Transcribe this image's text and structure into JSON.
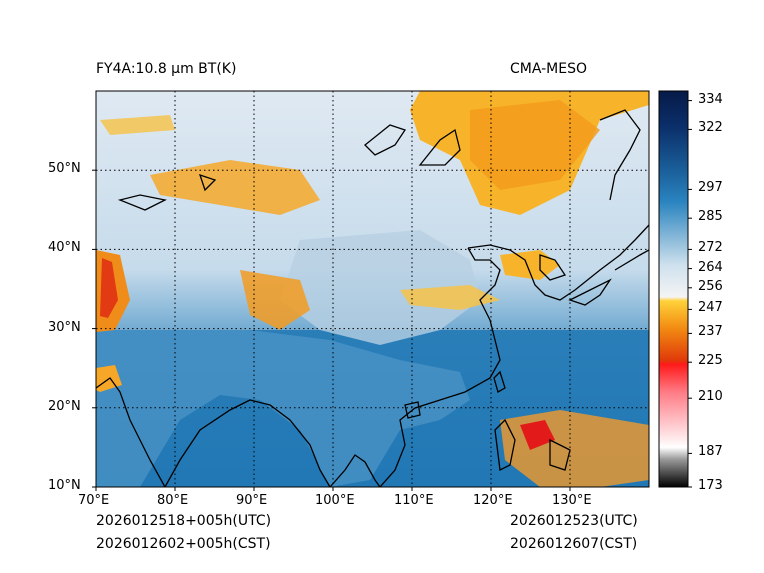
{
  "header": {
    "left_title": "FY4A:10.8 µm BT(K)",
    "right_title": "CMA-MESO"
  },
  "footer": {
    "init_utc": "2026012518+005h(UTC)",
    "init_cst": "2026012602+005h(CST)",
    "valid_utc": "2026012523(UTC)",
    "valid_cst": "2026012607(CST)"
  },
  "map": {
    "lon_range": [
      70,
      140
    ],
    "lat_range": [
      10,
      60
    ],
    "lon_ticks": [
      {
        "value": 70,
        "label": "70°E"
      },
      {
        "value": 80,
        "label": "80°E"
      },
      {
        "value": 90,
        "label": "90°E"
      },
      {
        "value": 100,
        "label": "100°E"
      },
      {
        "value": 110,
        "label": "110°E"
      },
      {
        "value": 120,
        "label": "120°E"
      },
      {
        "value": 130,
        "label": "130°E"
      }
    ],
    "lat_ticks": [
      {
        "value": 10,
        "label": "10°N"
      },
      {
        "value": 20,
        "label": "20°N"
      },
      {
        "value": 30,
        "label": "30°N"
      },
      {
        "value": 40,
        "label": "40°N"
      },
      {
        "value": 50,
        "label": "50°N"
      }
    ]
  },
  "colorbar": {
    "range": [
      173,
      338
    ],
    "ticks": [
      "334",
      "322",
      "297",
      "285",
      "272",
      "264",
      "256",
      "247",
      "237",
      "225",
      "210",
      "187",
      "173"
    ],
    "colors": {
      "ocean": "#1f77b4",
      "cloud_cold": "#f5a623",
      "cloud_high": "#e45a1a",
      "warm": "#0b2a6b"
    }
  }
}
